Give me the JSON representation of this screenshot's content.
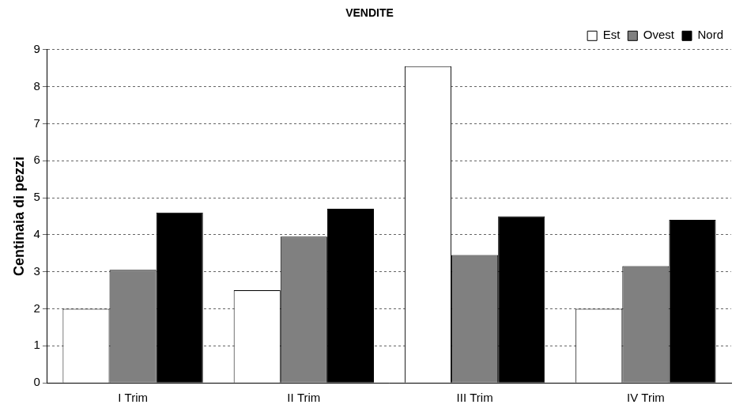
{
  "chart_data": {
    "type": "bar",
    "title": "VENDITE",
    "y_label": "Centinaia di pezzi",
    "categories": [
      "I Trim",
      "II Trim",
      "III Trim",
      "IV Trim"
    ],
    "series": [
      {
        "name": "Est",
        "color": "#ffffff",
        "values": [
          2,
          2.5,
          8.55,
          2
        ]
      },
      {
        "name": "Ovest",
        "color": "#808080",
        "values": [
          3.05,
          3.95,
          3.45,
          3.15
        ]
      },
      {
        "name": "Nord",
        "color": "#000000",
        "values": [
          4.6,
          4.7,
          4.5,
          4.4
        ]
      }
    ],
    "ylim": [
      0,
      9
    ],
    "yticks": [
      0,
      1,
      2,
      3,
      4,
      5,
      6,
      7,
      8,
      9
    ],
    "grid": true,
    "legend": "top-right"
  }
}
